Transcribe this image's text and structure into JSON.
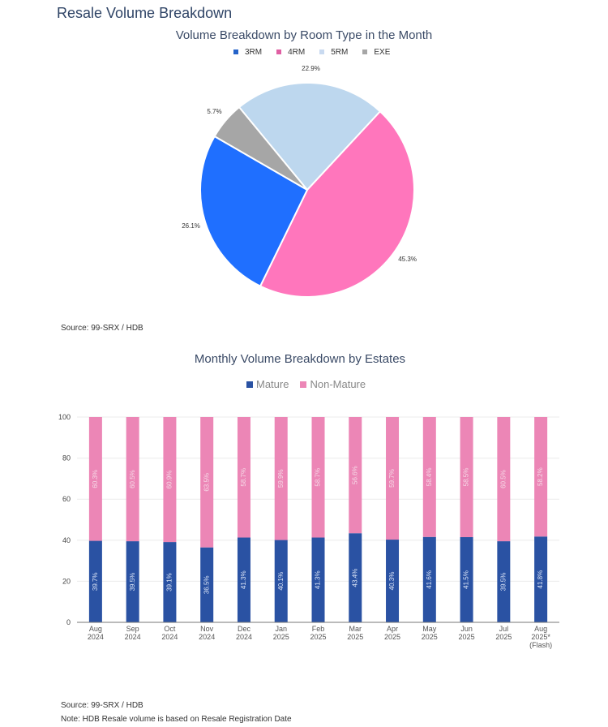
{
  "page_title": "Resale Volume Breakdown",
  "chart_data": [
    {
      "type": "pie",
      "title": "Volume Breakdown by Room Type in the Month",
      "legend_position": "top",
      "slices": [
        {
          "label": "5RM",
          "value": 22.9,
          "display": "22.9%",
          "color": "#bdd7ee"
        },
        {
          "label": "4RM",
          "value": 45.3,
          "display": "45.3%",
          "color": "#ff76bc"
        },
        {
          "label": "3RM",
          "value": 26.1,
          "display": "26.1%",
          "color": "#1f6fff"
        },
        {
          "label": "EXE",
          "value": 5.7,
          "display": "5.7%",
          "color": "#a6a6a6"
        }
      ],
      "legend": [
        {
          "label": "3RM",
          "color": "#2563c9"
        },
        {
          "label": "4RM",
          "color": "#e05fa3"
        },
        {
          "label": "5RM",
          "color": "#c9daf0"
        },
        {
          "label": "EXE",
          "color": "#a6a6a6"
        }
      ]
    },
    {
      "type": "bar",
      "stacked": true,
      "title": "Monthly Volume Breakdown by Estates",
      "legend_position": "top",
      "grid": true,
      "ylim": [
        0,
        100
      ],
      "yticks": [
        "0",
        "20",
        "40",
        "60",
        "80",
        "100"
      ],
      "categories": [
        [
          "Aug",
          "2024"
        ],
        [
          "Sep",
          "2024"
        ],
        [
          "Oct",
          "2024"
        ],
        [
          "Nov",
          "2024"
        ],
        [
          "Dec",
          "2024"
        ],
        [
          "Jan",
          "2025"
        ],
        [
          "Feb",
          "2025"
        ],
        [
          "Mar",
          "2025"
        ],
        [
          "Apr",
          "2025"
        ],
        [
          "May",
          "2025"
        ],
        [
          "Jun",
          "2025"
        ],
        [
          "Jul",
          "2025"
        ],
        [
          "Aug",
          "2025*",
          "(Flash)"
        ]
      ],
      "series": [
        {
          "name": "Mature",
          "color": "#2a52a3",
          "values": [
            39.7,
            39.5,
            39.1,
            36.5,
            41.3,
            40.1,
            41.3,
            43.4,
            40.3,
            41.6,
            41.5,
            39.5,
            41.8
          ]
        },
        {
          "name": "Non-Mature",
          "color": "#ec86b6",
          "values": [
            60.3,
            60.5,
            60.9,
            63.5,
            58.7,
            59.9,
            58.7,
            56.6,
            59.7,
            58.4,
            58.5,
            60.5,
            58.2
          ]
        }
      ]
    }
  ],
  "source1": "Source: 99-SRX / HDB",
  "source2": "Source: 99-SRX / HDB",
  "note": "Note: HDB Resale volume is based on Resale Registration Date"
}
